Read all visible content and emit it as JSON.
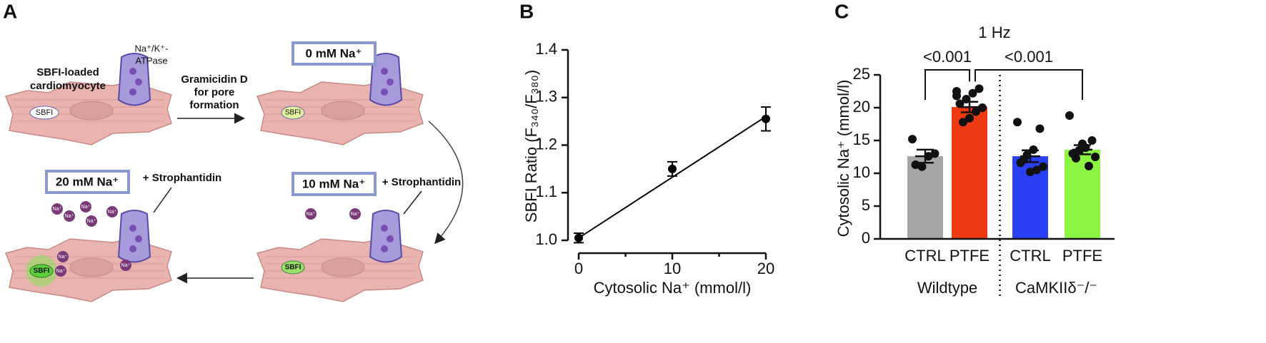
{
  "diagram": {
    "panel_label": "A",
    "cell_label": [
      "SBFI-loaded",
      "cardiomyocyte"
    ],
    "pump_label": [
      "Na⁺/K⁺-",
      "ATPase"
    ],
    "step_label": [
      "Gramicidin D",
      "for pore",
      "formation"
    ],
    "conditions": [
      "0 mM Na⁺",
      "10 mM Na⁺",
      "20 mM Na⁺"
    ],
    "drug": "+ Strophantidin",
    "dye": "SBFI",
    "ion": "Na⁺"
  },
  "chart_data": [
    {
      "type": "scatter",
      "panel_label": "B",
      "xlabel": "Cytosolic Na⁺ (mmol/l)",
      "ylabel": "SBFI Ratio (F₃₄₀/F₃₈₀)",
      "x": [
        0,
        10,
        20
      ],
      "values": [
        1.005,
        1.15,
        1.255
      ],
      "errors": [
        0.01,
        0.015,
        0.025
      ],
      "fit_line": {
        "x": [
          0,
          20
        ],
        "y": [
          1.005,
          1.26
        ]
      },
      "color": "#000000",
      "xlim": [
        0,
        20
      ],
      "xticks": [
        0,
        10,
        20
      ],
      "xminorticks": [
        5,
        15
      ],
      "ylim": [
        1.0,
        1.4
      ],
      "yticks": [
        {
          "value": 1.0,
          "label": "1.0"
        },
        1.1,
        1.2,
        1.3,
        1.4
      ]
    },
    {
      "type": "bar",
      "panel_label": "C",
      "title": "1 Hz",
      "ylabel": "Cytosolic  Na⁺ (mmol/l)",
      "categories": [
        "CTRL",
        "PTFE",
        "CTRL",
        "PTFE"
      ],
      "groups": [
        {
          "name": "Wildtype",
          "size": 2
        },
        {
          "name": "CaMKIIδ⁻/⁻",
          "size": 2
        }
      ],
      "values": [
        12.6,
        20.1,
        12.6,
        13.6
      ],
      "errors": [
        1.0,
        0.8,
        0.9,
        0.7
      ],
      "colors": [
        "#a6a6a6",
        "#ee3a12",
        "#2b3ff5",
        "#8cf542"
      ],
      "points": [
        [
          15.2,
          13.0,
          12.6,
          11.0,
          11.3
        ],
        [
          22.5,
          22.9,
          22.2,
          21.3,
          20.6,
          20.0,
          19.4,
          18.4,
          17.8,
          21.8
        ],
        [
          17.8,
          16.8,
          13.6,
          12.8,
          11.6,
          11.0,
          10.5,
          10.2,
          12.1
        ],
        [
          18.8,
          15.0,
          13.9,
          13.5,
          13.0,
          12.5,
          11.1,
          14.5,
          12.3
        ]
      ],
      "annotations": [
        {
          "text": "<0.001",
          "from": 0,
          "to": 1
        },
        {
          "text": "<0.001",
          "from": 1,
          "to": 3
        }
      ],
      "ylim": [
        0,
        25
      ],
      "yticks": [
        0,
        5,
        10,
        15,
        20,
        25
      ]
    }
  ]
}
